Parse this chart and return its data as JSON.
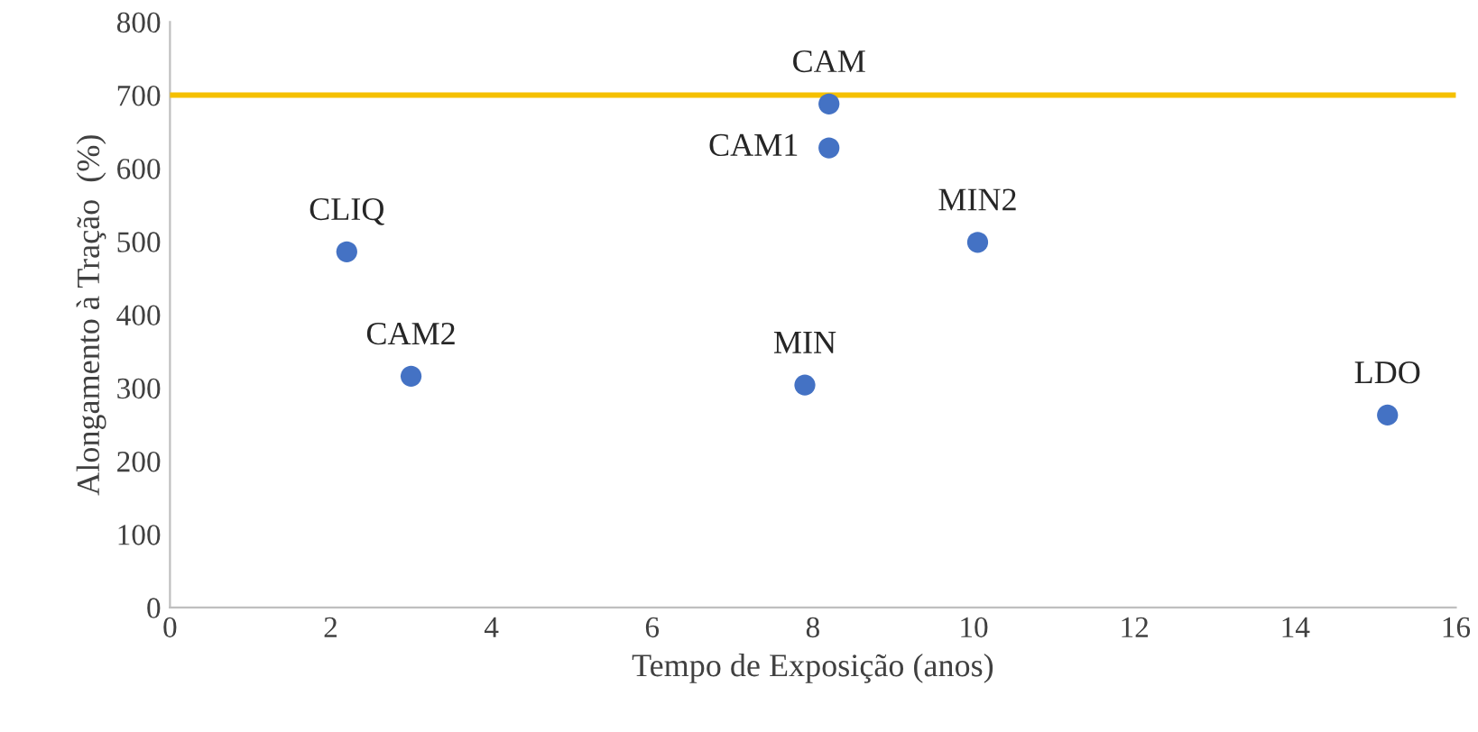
{
  "chart_data": {
    "type": "scatter",
    "xlabel": "Tempo de Exposição (anos)",
    "ylabel": "Alongamento à Tração  (%)",
    "series": [
      {
        "color": "#4472c4",
        "x": [
          2.2,
          3.0,
          7.9,
          8.2,
          8.2,
          10.05,
          15.15
        ],
        "values": [
          486,
          316,
          304,
          628,
          688,
          499,
          263
        ]
      }
    ],
    "annotations": [
      {
        "text": "CLIQ",
        "x": 2.2,
        "y": 486
      },
      {
        "text": "CAM2",
        "x": 3.0,
        "y": 316
      },
      {
        "text": "MIN",
        "x": 7.9,
        "y": 304
      },
      {
        "text": "CAM1",
        "x": 8.2,
        "y": 628
      },
      {
        "text": "CAM",
        "x": 8.2,
        "y": 688
      },
      {
        "text": "MIN2",
        "x": 10.05,
        "y": 499
      },
      {
        "text": "LDO",
        "x": 15.15,
        "y": 263
      }
    ],
    "ref_lines": [
      {
        "axis": "y",
        "value": 700,
        "color": "#f5c000"
      }
    ],
    "xlim": [
      0,
      16
    ],
    "xticks": [
      0,
      2,
      4,
      6,
      8,
      10,
      12,
      14,
      16
    ],
    "ylim": [
      0,
      800
    ],
    "yticks": [
      0,
      100,
      200,
      300,
      400,
      500,
      600,
      700,
      800
    ],
    "marker": "circle",
    "grid": false,
    "legend": false
  }
}
